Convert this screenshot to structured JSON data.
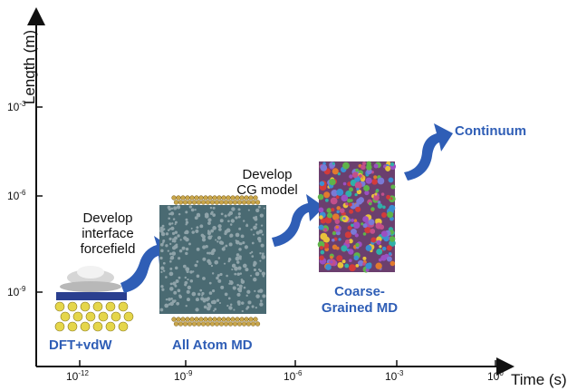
{
  "axes": {
    "y_title": "Length (m)",
    "x_title": "Time (s)",
    "y_ticks": [
      {
        "base": "10",
        "exp": "-3"
      },
      {
        "base": "10",
        "exp": "-6"
      },
      {
        "base": "10",
        "exp": "-9"
      }
    ],
    "x_ticks": [
      {
        "base": "10",
        "exp": "-12"
      },
      {
        "base": "10",
        "exp": "-9"
      },
      {
        "base": "10",
        "exp": "-6"
      },
      {
        "base": "10",
        "exp": "-3"
      },
      {
        "base": "10",
        "exp": "0"
      }
    ]
  },
  "stages": {
    "dft": "DFT+vdW",
    "all_atom": "All Atom MD",
    "cg_line1": "Coarse-",
    "cg_line2": "Grained MD",
    "continuum": "Continuum"
  },
  "notes": {
    "interface_1": "Develop",
    "interface_2": "interface",
    "interface_3": "forcefield",
    "cg_1": "Develop",
    "cg_2": "CG model"
  },
  "colors": {
    "arrow_blue": "#2f5eb6",
    "label_blue": "#2f5eb6",
    "axis": "#111111",
    "atom_gold": "#c9a64a",
    "molecule_teal": "#4a6a72",
    "dft_yellow": "#e5d64a",
    "dft_blue": "#2a3f8f"
  }
}
